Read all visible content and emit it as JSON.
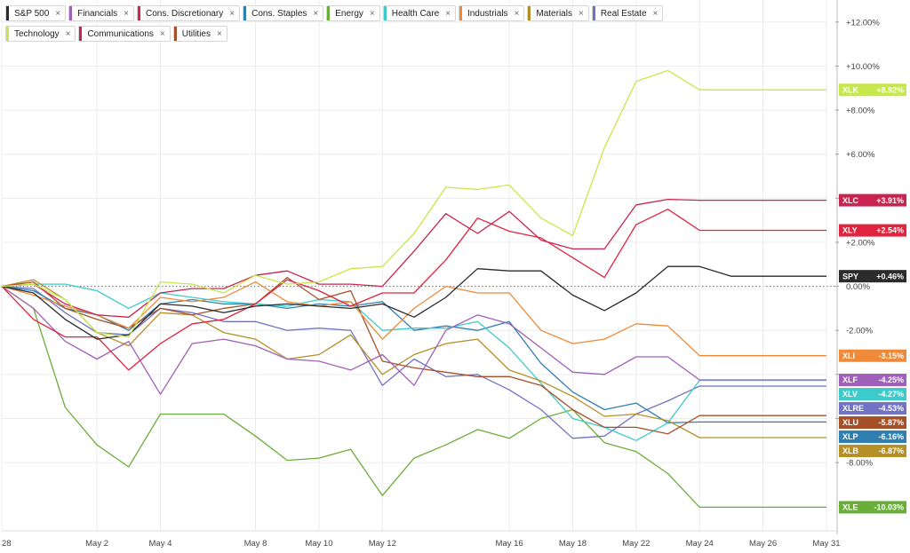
{
  "legend": [
    {
      "label": "S&P 500",
      "color": "#2b2b2b"
    },
    {
      "label": "Financials",
      "color": "#a05fb8"
    },
    {
      "label": "Cons. Discretionary",
      "color": "#e0233e"
    },
    {
      "label": "Cons. Staples",
      "color": "#2f7fb0"
    },
    {
      "label": "Energy",
      "color": "#6aae3a"
    },
    {
      "label": "Health Care",
      "color": "#3ccbcb"
    },
    {
      "label": "Industrials",
      "color": "#ee8a3a"
    },
    {
      "label": "Materials",
      "color": "#b59026"
    },
    {
      "label": "Real Estate",
      "color": "#7272c4"
    },
    {
      "label": "Technology",
      "color": "#c7e84a"
    },
    {
      "label": "Communications",
      "color": "#c8244f"
    },
    {
      "label": "Utilities",
      "color": "#a6502a"
    }
  ],
  "close_glyph": "×",
  "chart_data": {
    "type": "line",
    "x": [
      "Apr 28",
      "Apr 29",
      "Apr 30",
      "May 2",
      "May 3",
      "May 4",
      "May 6",
      "May 7",
      "May 8",
      "May 9",
      "May 10",
      "May 11",
      "May 12",
      "May 13",
      "May 14",
      "May 15",
      "May 16",
      "May 17",
      "May 18",
      "May 20",
      "May 22",
      "May 23",
      "May 24",
      "May 25",
      "May 26",
      "May 28",
      "May 31"
    ],
    "x_tick_labels": [
      "28",
      "May 2",
      "May 4",
      "May 8",
      "May 10",
      "May 12",
      "May 16",
      "May 18",
      "May 22",
      "May 24",
      "May 26",
      "May 31"
    ],
    "y_ticks": [
      -8,
      -6,
      -4,
      -2,
      0,
      2,
      4,
      6,
      8,
      10,
      12
    ],
    "y_tick_labels": [
      "-8.00%",
      "",
      "",
      "-2.00%",
      "0.00%",
      "+2.00%",
      "",
      "+6.00%",
      "+8.00%",
      "+10.00%",
      "+12.00%"
    ],
    "ylim": [
      -11.1,
      13
    ],
    "zero_line": "dotted",
    "series": [
      {
        "key": "spy",
        "tag": "SPY",
        "end_label": "+0.46%",
        "color": "#2b2b2b",
        "values": [
          0,
          -0.3,
          -1.5,
          -2.4,
          -2.2,
          -0.8,
          -0.9,
          -1.2,
          -0.9,
          -0.8,
          -0.9,
          -1.0,
          -0.8,
          -1.4,
          -0.5,
          0.8,
          0.7,
          0.7,
          -0.4,
          -1.1,
          -0.3,
          0.9,
          0.9,
          0.46,
          0.46,
          0.46,
          0.46
        ]
      },
      {
        "key": "xlf",
        "tag": "XLF",
        "end_label": "-4.25%",
        "color": "#a05fb8",
        "values": [
          0,
          -1.0,
          -2.5,
          -3.3,
          -2.5,
          -4.9,
          -2.6,
          -2.4,
          -2.7,
          -3.3,
          -3.4,
          -3.8,
          -3.1,
          -4.5,
          -2.0,
          -1.3,
          -1.7,
          -2.8,
          -3.9,
          -4.0,
          -3.2,
          -3.2,
          -4.25,
          -4.25,
          -4.25,
          -4.25,
          -4.25
        ]
      },
      {
        "key": "xly",
        "tag": "XLY",
        "end_label": "+2.54%",
        "color": "#e0233e",
        "values": [
          0,
          -1.5,
          -2.3,
          -2.3,
          -3.8,
          -2.6,
          -1.7,
          -1.5,
          -0.8,
          0.3,
          -0.2,
          -0.9,
          -0.3,
          -0.3,
          1.2,
          3.1,
          2.5,
          2.2,
          1.3,
          0.4,
          2.8,
          3.5,
          2.54,
          2.54,
          2.54,
          2.54,
          2.54
        ]
      },
      {
        "key": "xlp",
        "tag": "XLP",
        "end_label": "-6.16%",
        "color": "#2f7fb0",
        "values": [
          0,
          -0.2,
          -1.0,
          -1.3,
          -2.0,
          -0.8,
          -0.6,
          -0.8,
          -0.8,
          -1.0,
          -0.8,
          -0.9,
          -0.7,
          -2.0,
          -1.8,
          -2.0,
          -1.6,
          -3.5,
          -4.8,
          -5.6,
          -5.3,
          -6.2,
          -6.16,
          -6.16,
          -6.16,
          -6.16,
          -6.16
        ]
      },
      {
        "key": "xle",
        "tag": "XLE",
        "end_label": "-10.03%",
        "color": "#6aae3a",
        "values": [
          0,
          -1.0,
          -5.5,
          -7.2,
          -8.2,
          -5.8,
          -5.8,
          -5.8,
          -6.8,
          -7.9,
          -7.8,
          -7.4,
          -9.5,
          -7.8,
          -7.2,
          -6.5,
          -6.9,
          -6.0,
          -5.6,
          -7.1,
          -7.5,
          -8.5,
          -10.03,
          -10.03,
          -10.03,
          -10.03,
          -10.03
        ]
      },
      {
        "key": "xlv",
        "tag": "XLV",
        "end_label": "-4.27%",
        "color": "#3ccbcb",
        "values": [
          0,
          0.1,
          0.1,
          -0.2,
          -1.0,
          -0.3,
          -0.5,
          -0.7,
          -0.8,
          -0.9,
          -0.6,
          -0.7,
          -2.0,
          -1.9,
          -1.9,
          -1.6,
          -2.8,
          -4.4,
          -6.0,
          -6.4,
          -7.0,
          -6.2,
          -4.27,
          -4.27,
          -4.27,
          -4.27,
          -4.27
        ]
      },
      {
        "key": "xli",
        "tag": "XLI",
        "end_label": "-3.15%",
        "color": "#ee8a3a",
        "values": [
          0,
          -0.4,
          -0.9,
          -1.3,
          -1.9,
          -0.5,
          -0.7,
          -0.5,
          0.2,
          -0.7,
          -0.9,
          -0.7,
          -2.4,
          -1.0,
          0,
          -0.3,
          -0.3,
          -2.0,
          -2.6,
          -2.4,
          -1.7,
          -1.8,
          -3.15,
          -3.15,
          -3.15,
          -3.15,
          -3.15
        ]
      },
      {
        "key": "xlb",
        "tag": "XLB",
        "end_label": "-6.87%",
        "color": "#b59026",
        "values": [
          0,
          0.3,
          -0.6,
          -2.1,
          -2.7,
          -1.2,
          -1.3,
          -2.1,
          -2.4,
          -3.3,
          -3.1,
          -2.2,
          -4.0,
          -3.1,
          -2.6,
          -2.4,
          -3.8,
          -4.3,
          -5.0,
          -5.9,
          -5.8,
          -6.1,
          -6.87,
          -6.87,
          -6.87,
          -6.87,
          -6.87
        ]
      },
      {
        "key": "xlre",
        "tag": "XLRE",
        "end_label": "-4.53%",
        "color": "#7272c4",
        "values": [
          0,
          -0.1,
          -1.2,
          -2.1,
          -2.2,
          -1.0,
          -1.2,
          -1.6,
          -1.6,
          -2.0,
          -1.9,
          -2.0,
          -4.5,
          -3.3,
          -4.1,
          -4.0,
          -4.7,
          -5.6,
          -6.9,
          -6.8,
          -5.8,
          -5.2,
          -4.53,
          -4.53,
          -4.53,
          -4.53,
          -4.53
        ]
      },
      {
        "key": "xlk",
        "tag": "XLK",
        "end_label": "+8.92%",
        "color": "#c7e84a",
        "values": [
          0,
          0.1,
          -0.6,
          -2.1,
          -2.3,
          0.2,
          0.1,
          -0.3,
          0.5,
          0.1,
          0.2,
          0.8,
          0.9,
          2.4,
          4.5,
          4.4,
          4.6,
          3.1,
          2.3,
          6.3,
          9.3,
          9.8,
          8.92,
          8.92,
          8.92,
          8.92,
          8.92
        ]
      },
      {
        "key": "xlc",
        "tag": "XLC",
        "end_label": "+3.91%",
        "color": "#c8244f",
        "values": [
          0,
          0.1,
          -0.8,
          -1.3,
          -1.4,
          -0.3,
          -0.1,
          -0.1,
          0.5,
          0.7,
          0.1,
          0.1,
          0.0,
          1.6,
          3.3,
          2.4,
          3.4,
          2.1,
          1.7,
          1.7,
          3.7,
          3.95,
          3.91,
          3.91,
          3.91,
          3.91,
          3.91
        ]
      },
      {
        "key": "xlu",
        "tag": "XLU",
        "end_label": "-5.87%",
        "color": "#a6502a",
        "values": [
          0,
          0.2,
          -1.0,
          -1.5,
          -1.9,
          -1.0,
          -1.3,
          -1.0,
          -0.8,
          0.4,
          -0.6,
          -0.2,
          -3.4,
          -3.7,
          -3.9,
          -4.1,
          -4.1,
          -4.5,
          -5.6,
          -6.4,
          -6.4,
          -6.7,
          -5.87,
          -5.87,
          -5.87,
          -5.87,
          -5.87
        ]
      }
    ]
  }
}
